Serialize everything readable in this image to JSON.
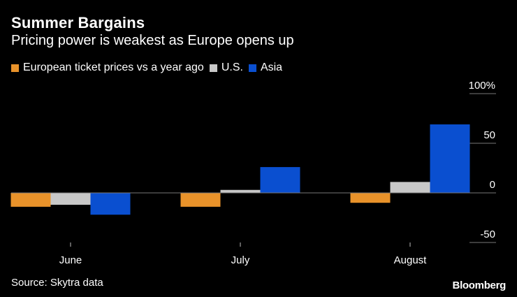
{
  "header": {
    "title": "Summer Bargains",
    "subtitle": "Pricing power is weakest as Europe opens up"
  },
  "footer": {
    "source": "Source: Skytra data",
    "brand": "Bloomberg"
  },
  "colors": {
    "europe": "#e8922a",
    "us": "#c8c8c8",
    "asia": "#0a4fd0",
    "background": "#000000",
    "gridline": "#777777"
  },
  "chart_data": {
    "type": "bar",
    "title": "Summer Bargains",
    "subtitle": "Pricing power is weakest as Europe opens up",
    "categories": [
      "June",
      "July",
      "August"
    ],
    "series": [
      {
        "name": "European ticket prices vs a year ago",
        "values": [
          -14,
          -14,
          -10
        ]
      },
      {
        "name": "U.S.",
        "values": [
          -12,
          3,
          11
        ]
      },
      {
        "name": "Asia",
        "values": [
          -22,
          26,
          69
        ]
      }
    ],
    "y_ticks": [
      100,
      50,
      0,
      -50
    ],
    "y_tick_labels": [
      "100%",
      "50",
      "0",
      "-50"
    ],
    "ylim": [
      -50,
      100
    ],
    "xlabel": "",
    "ylabel": "",
    "legend": "top-left",
    "grid": true
  }
}
